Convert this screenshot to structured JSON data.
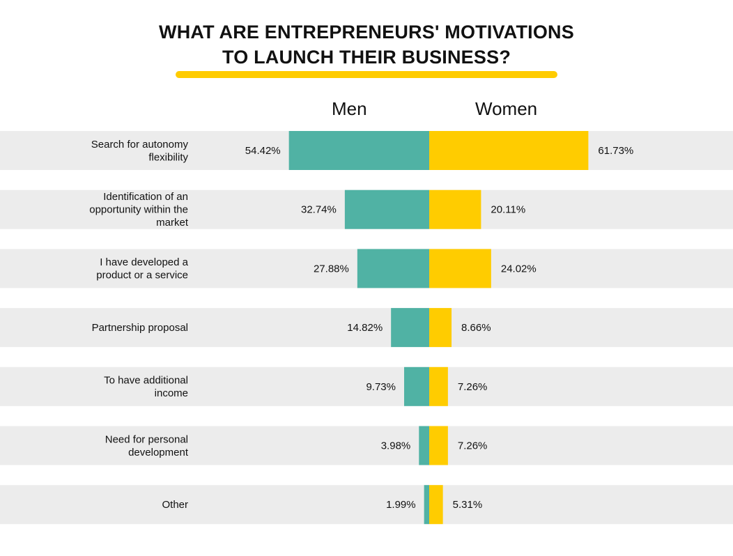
{
  "title_line1": "WHAT ARE ENTREPRENEURS' MOTIVATIONS",
  "title_line2": "TO LAUNCH THEIR BUSINESS?",
  "colors": {
    "men": "#50b2a4",
    "women": "#ffcc00",
    "row_band": "#ececec",
    "accent_line": "#ffcc00"
  },
  "chart_data": {
    "type": "bar",
    "orientation": "horizontal-diverging",
    "categories": [
      [
        "Search for autonomy",
        "flexibility"
      ],
      [
        "Identification of an",
        "opportunity within the",
        "market"
      ],
      [
        "I have developed a",
        "product or a service"
      ],
      [
        "Partnership proposal"
      ],
      [
        "To have additional",
        "income"
      ],
      [
        "Need for personal",
        "development"
      ],
      [
        "Other"
      ]
    ],
    "series": [
      {
        "name": "Men",
        "values": [
          54.42,
          32.74,
          27.88,
          14.82,
          9.73,
          3.98,
          1.99
        ],
        "labels": [
          "54.42%",
          "32.74%",
          "27.88%",
          "14.82%",
          "9.73%",
          "3.98%",
          "1.99%"
        ]
      },
      {
        "name": "Women",
        "values": [
          61.73,
          20.11,
          24.02,
          8.66,
          7.26,
          7.26,
          5.31
        ],
        "labels": [
          "61.73%",
          "20.11%",
          "24.02%",
          "8.66%",
          "7.26%",
          "7.26%",
          "5.31%"
        ]
      }
    ],
    "unit": "%"
  }
}
